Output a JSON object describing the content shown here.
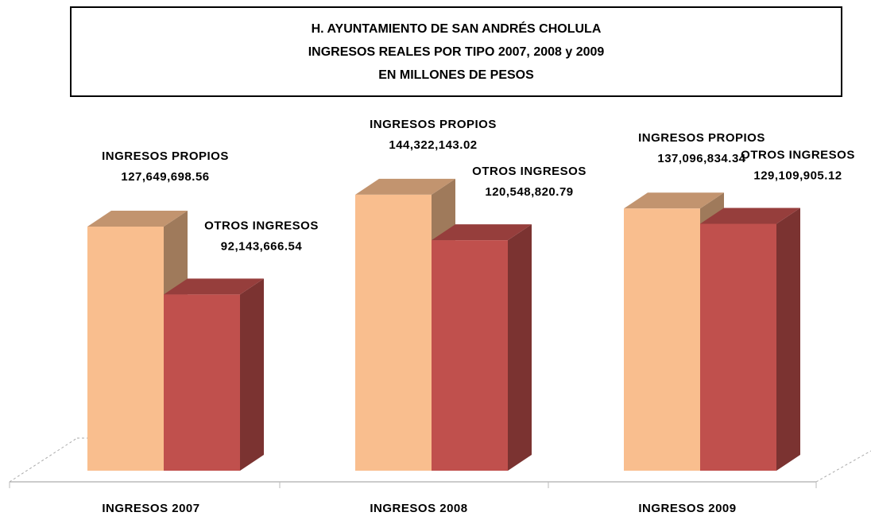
{
  "chart_data": {
    "type": "bar3d",
    "title": [
      "H. AYUNTAMIENTO DE SAN ANDRÉS CHOLULA",
      "INGRESOS REALES POR TIPO 2007, 2008 y 2009",
      "EN MILLONES DE PESOS"
    ],
    "categories": [
      "INGRESOS 2007",
      "INGRESOS 2008",
      "INGRESOS 2009"
    ],
    "series": [
      {
        "name": "INGRESOS PROPIOS",
        "color": "#f9be8e",
        "values": [
          127649698.56,
          144322143.02,
          137096834.34
        ],
        "value_labels": [
          "127,649,698.56",
          "144,322,143.02",
          "137,096,834.34"
        ]
      },
      {
        "name": "OTROS INGRESOS",
        "color": "#c0504d",
        "values": [
          92143666.54,
          120548820.79,
          129109905.12
        ],
        "value_labels": [
          "92,143,666.54",
          "120,548,820.79",
          "129,109,905.12"
        ]
      }
    ]
  }
}
